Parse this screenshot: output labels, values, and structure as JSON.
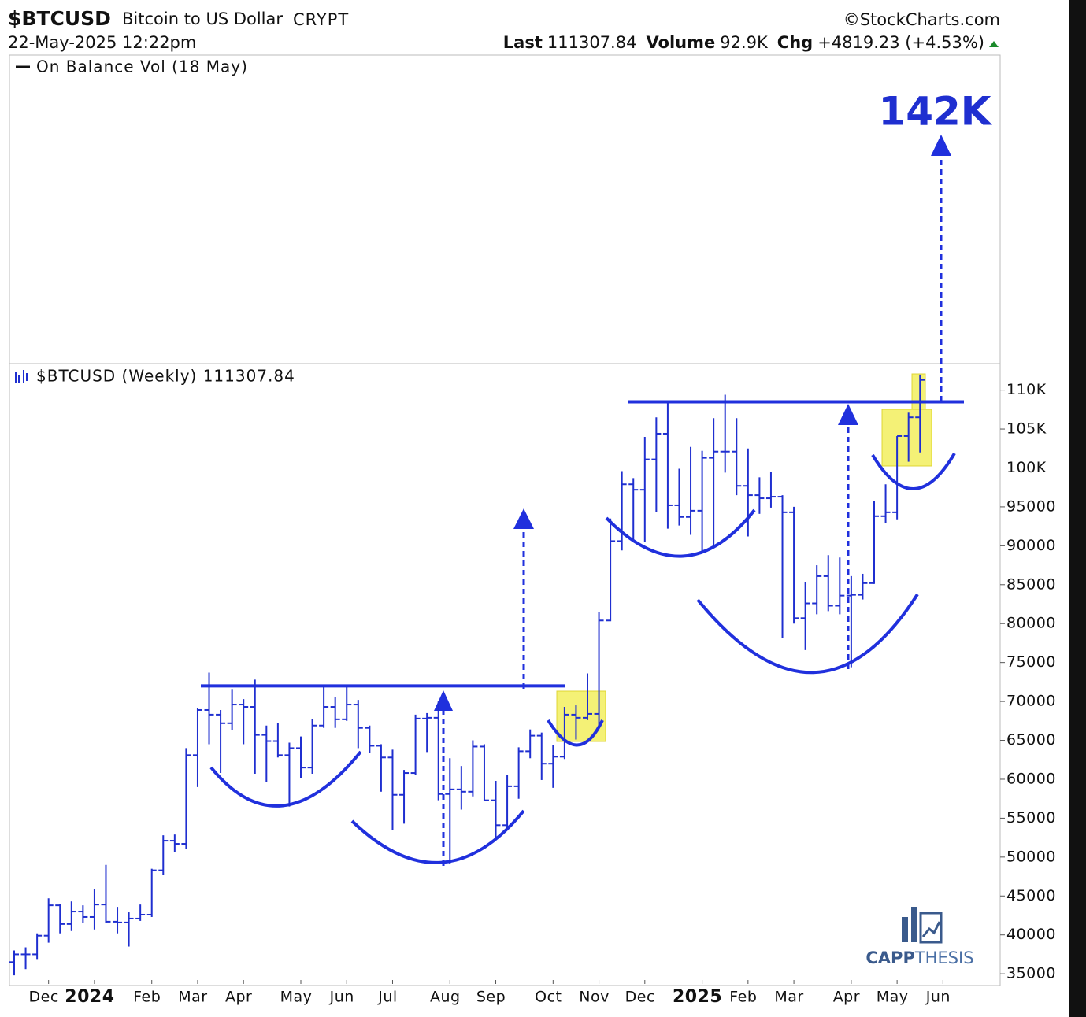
{
  "chart_data": {
    "type": "ohlc",
    "title": "$BTCUSD",
    "subtitle": "Bitcoin to US Dollar",
    "exchange": "CRYPT",
    "date": "22-May-2025 12:22pm",
    "source": "©StockCharts.com",
    "stats": [
      {
        "label": "Last",
        "value": "111307.84"
      },
      {
        "label": "Volume",
        "value": "92.9K"
      },
      {
        "label": "Chg",
        "value": "+4819.23 (+4.53%)"
      }
    ],
    "indicator_label": "On Balance Vol (18 May)",
    "annotation": "142K",
    "logo": [
      "CAPP",
      "THESIS"
    ],
    "categories": [
      null,
      null,
      null,
      "Dec",
      null,
      null,
      null,
      "2024",
      null,
      null,
      null,
      null,
      "Feb",
      null,
      null,
      null,
      "Mar",
      null,
      null,
      null,
      "Apr",
      null,
      null,
      null,
      null,
      "May",
      null,
      null,
      null,
      "Jun",
      null,
      null,
      null,
      "Jul",
      null,
      null,
      null,
      null,
      "Aug",
      null,
      null,
      null,
      "Sep",
      null,
      null,
      null,
      null,
      "Oct",
      null,
      null,
      null,
      "Nov",
      null,
      null,
      null,
      "Dec",
      null,
      null,
      null,
      null,
      "2025",
      null,
      null,
      null,
      "Feb",
      null,
      null,
      null,
      "Mar",
      null,
      null,
      null,
      null,
      "Apr",
      null,
      null,
      null,
      "May",
      null,
      null,
      null,
      "Jun"
    ],
    "series": [
      {
        "name": "$BTCUSD (Weekly) 111307.84",
        "color": "#1f2fd0",
        "open": [
          36500,
          37500,
          37500,
          39900,
          43800,
          41400,
          43000,
          42300,
          43900,
          41700,
          41600,
          42100,
          42600,
          48300,
          52100,
          51700,
          63100,
          68900,
          68300,
          67200,
          69600,
          69300,
          65700,
          64900,
          63100,
          64000,
          61500,
          66900,
          69300,
          67700,
          69600,
          66600,
          64300,
          62800,
          58000,
          60800,
          67800,
          67900,
          58100,
          58700,
          58400,
          64200,
          57300,
          54100,
          59100,
          63600,
          65600,
          62000,
          62900,
          68300,
          67900,
          68400,
          80400,
          90600,
          97900,
          97200,
          101100,
          104400,
          95200,
          93700,
          94500,
          101300,
          102100,
          102100,
          97700,
          96500,
          96100,
          96300,
          94300,
          80700,
          82600,
          86100,
          82300,
          83600,
          83700,
          85200,
          93800,
          94300,
          104100,
          106500,
          null,
          null
        ],
        "high": [
          38000,
          38400,
          40200,
          44700,
          44000,
          44300,
          43800,
          45900,
          49000,
          43600,
          42900,
          43900,
          48500,
          52800,
          52900,
          64000,
          69200,
          73700,
          68900,
          71600,
          70300,
          72800,
          66900,
          67200,
          64700,
          65500,
          67700,
          71900,
          70600,
          71900,
          70200,
          66900,
          64500,
          63800,
          61200,
          68300,
          68500,
          70000,
          62700,
          61700,
          65000,
          64500,
          59800,
          60600,
          64100,
          66400,
          66000,
          64400,
          69300,
          69500,
          73600,
          81500,
          93500,
          99600,
          98700,
          104000,
          106500,
          108300,
          99900,
          102700,
          102200,
          106400,
          109400,
          106400,
          102500,
          98800,
          99500,
          96500,
          95000,
          85300,
          87500,
          88800,
          88500,
          86100,
          86400,
          95800,
          97900,
          104100,
          107100,
          112000,
          null,
          null
        ],
        "low": [
          34800,
          35600,
          36900,
          39000,
          40200,
          40500,
          41500,
          40700,
          41500,
          40200,
          38500,
          41800,
          42300,
          47700,
          50600,
          51000,
          59000,
          64500,
          60800,
          66300,
          64500,
          60700,
          59600,
          62800,
          56500,
          60200,
          60700,
          66600,
          66600,
          67500,
          64000,
          63400,
          58400,
          53500,
          54300,
          60600,
          63500,
          57300,
          49100,
          56100,
          57800,
          57200,
          52500,
          53600,
          57500,
          62700,
          59900,
          58900,
          62600,
          65100,
          67600,
          66800,
          80300,
          89400,
          90800,
          90500,
          94300,
          92200,
          92600,
          91400,
          89300,
          89900,
          99400,
          96500,
          91200,
          94100,
          94900,
          78200,
          80000,
          76600,
          81200,
          81600,
          81200,
          74400,
          83100,
          85100,
          92900,
          93400,
          100800,
          102000,
          null,
          null
        ],
        "close": [
          37500,
          37500,
          39900,
          43800,
          41400,
          43000,
          42300,
          43900,
          41700,
          41600,
          42100,
          42600,
          48300,
          52100,
          51700,
          63100,
          68900,
          68300,
          67200,
          69600,
          69300,
          65700,
          64900,
          63100,
          64000,
          61500,
          66900,
          69300,
          67700,
          69600,
          66600,
          64300,
          62800,
          58000,
          60800,
          67800,
          67900,
          58100,
          58700,
          58400,
          64200,
          57300,
          54100,
          59100,
          63600,
          65600,
          62000,
          62900,
          68300,
          67900,
          68400,
          80400,
          90600,
          97900,
          97200,
          101100,
          104400,
          95200,
          93700,
          94500,
          101300,
          102100,
          102100,
          97700,
          96500,
          96100,
          96300,
          94300,
          80700,
          82600,
          86100,
          82300,
          83600,
          83700,
          85200,
          93800,
          94300,
          104100,
          106500,
          111307.84,
          null,
          null
        ]
      }
    ],
    "levels": [
      72000,
      108500
    ],
    "ylim": [
      33700,
      113400
    ],
    "yticks": [
      35000,
      40000,
      45000,
      50000,
      55000,
      60000,
      65000,
      70000,
      75000,
      80000,
      85000,
      90000,
      95000,
      {
        "value": 100000,
        "label": "100K"
      },
      {
        "value": 105000,
        "label": "105K"
      },
      {
        "value": 110000,
        "label": "110K"
      }
    ]
  }
}
